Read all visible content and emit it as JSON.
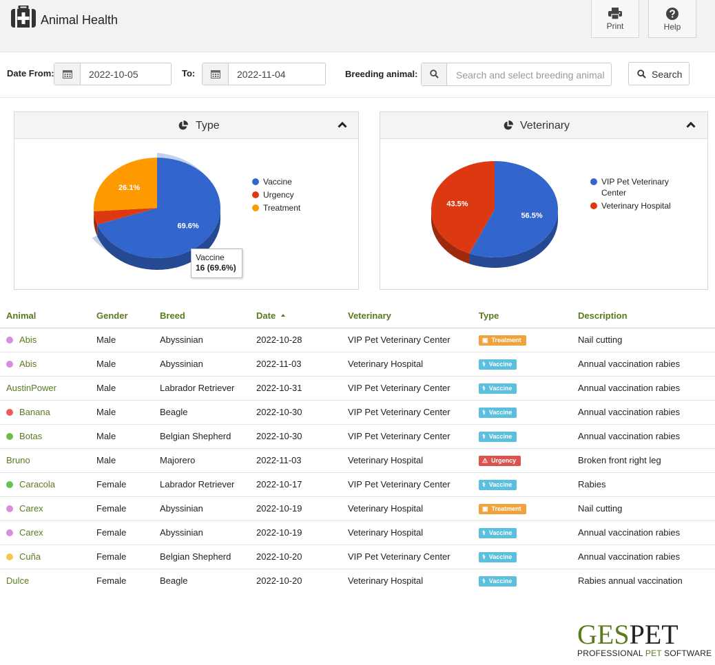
{
  "app": {
    "title": "Animal Health"
  },
  "toolbar": {
    "print_label": "Print",
    "help_label": "Help"
  },
  "filters": {
    "date_from_label": "Date From:",
    "date_from_value": "2022-10-05",
    "to_label": "To:",
    "to_value": "2022-11-04",
    "breeding_label": "Breeding animal:",
    "breeding_placeholder": "Search and select breeding animal",
    "search_label": "Search"
  },
  "panels": {
    "type_title": "Type",
    "vet_title": "Veterinary"
  },
  "chart_data": [
    {
      "type": "pie",
      "title": "Type",
      "categories": [
        "Vaccine",
        "Urgency",
        "Treatment"
      ],
      "values": [
        69.6,
        4.3,
        26.1
      ],
      "labels": [
        "69.6%",
        "",
        "26.1%"
      ],
      "colors": [
        "#3366cc",
        "#dc3912",
        "#ff9900"
      ],
      "legend_position": "right",
      "tooltip": {
        "label": "Vaccine",
        "value": "16 (69.6%)"
      }
    },
    {
      "type": "pie",
      "title": "Veterinary",
      "categories": [
        "VIP Pet Veterinary Center",
        "Veterinary Hospital"
      ],
      "legend_lines": [
        [
          "VIP Pet Veterinary",
          "Center"
        ],
        [
          "Veterinary Hospital"
        ]
      ],
      "values": [
        56.5,
        43.5
      ],
      "labels": [
        "56.5%",
        "43.5%"
      ],
      "colors": [
        "#3366cc",
        "#dc3912"
      ],
      "legend_position": "right"
    }
  ],
  "table": {
    "headers": [
      "Animal",
      "Gender",
      "Breed",
      "Date",
      "Veterinary",
      "Type",
      "Description"
    ],
    "rows": [
      {
        "animal": "Abis",
        "dot": "#d98ce0",
        "gender": "Male",
        "breed": "Abyssinian",
        "date": "2022-10-28",
        "vet": "VIP Pet Veterinary Center",
        "type": "Treatment",
        "badge_color": "#f0a23c",
        "icon": "treatment-icon",
        "desc": "Nail cutting"
      },
      {
        "animal": "Abis",
        "dot": "#d98ce0",
        "gender": "Male",
        "breed": "Abyssinian",
        "date": "2022-11-03",
        "vet": "Veterinary Hospital",
        "type": "Vaccine",
        "badge_color": "#5bc0de",
        "icon": "syringe-icon",
        "desc": "Annual vaccination rabies"
      },
      {
        "animal": "AustinPower",
        "dot": "",
        "gender": "Male",
        "breed": "Labrador Retriever",
        "date": "2022-10-31",
        "vet": "VIP Pet Veterinary Center",
        "type": "Vaccine",
        "badge_color": "#5bc0de",
        "icon": "syringe-icon",
        "desc": "Annual vaccination rabies"
      },
      {
        "animal": "Banana",
        "dot": "#ef5b5b",
        "gender": "Male",
        "breed": "Beagle",
        "date": "2022-10-30",
        "vet": "VIP Pet Veterinary Center",
        "type": "Vaccine",
        "badge_color": "#5bc0de",
        "icon": "syringe-icon",
        "desc": "Annual vaccination rabies"
      },
      {
        "animal": "Botas",
        "dot": "#6cc04a",
        "gender": "Male",
        "breed": "Belgian Shepherd",
        "date": "2022-10-30",
        "vet": "VIP Pet Veterinary Center",
        "type": "Vaccine",
        "badge_color": "#5bc0de",
        "icon": "syringe-icon",
        "desc": "Annual vaccination rabies"
      },
      {
        "animal": "Bruno",
        "dot": "",
        "gender": "Male",
        "breed": "Majorero",
        "date": "2022-11-03",
        "vet": "Veterinary Hospital",
        "type": "Urgency",
        "badge_color": "#d9534f",
        "icon": "warning-icon",
        "desc": "Broken front right leg"
      },
      {
        "animal": "Caracola",
        "dot": "#6cc04a",
        "gender": "Female",
        "breed": "Labrador Retriever",
        "date": "2022-10-17",
        "vet": "VIP Pet Veterinary Center",
        "type": "Vaccine",
        "badge_color": "#5bc0de",
        "icon": "syringe-icon",
        "desc": "Rabies"
      },
      {
        "animal": "Carex",
        "dot": "#d98ce0",
        "gender": "Female",
        "breed": "Abyssinian",
        "date": "2022-10-19",
        "vet": "Veterinary Hospital",
        "type": "Treatment",
        "badge_color": "#f0a23c",
        "icon": "treatment-icon",
        "desc": "Nail cutting"
      },
      {
        "animal": "Carex",
        "dot": "#d98ce0",
        "gender": "Female",
        "breed": "Abyssinian",
        "date": "2022-10-19",
        "vet": "Veterinary Hospital",
        "type": "Vaccine",
        "badge_color": "#5bc0de",
        "icon": "syringe-icon",
        "desc": "Annual vaccination rabies"
      },
      {
        "animal": "Cuña",
        "dot": "#f2c94c",
        "gender": "Female",
        "breed": "Belgian Shepherd",
        "date": "2022-10-20",
        "vet": "VIP Pet Veterinary Center",
        "type": "Vaccine",
        "badge_color": "#5bc0de",
        "icon": "syringe-icon",
        "desc": "Annual vaccination rabies"
      },
      {
        "animal": "Dulce",
        "dot": "",
        "gender": "Female",
        "breed": "Beagle",
        "date": "2022-10-20",
        "vet": "Veterinary Hospital",
        "type": "Vaccine",
        "badge_color": "#5bc0de",
        "icon": "syringe-icon",
        "desc": "Rabies annual vaccination"
      }
    ]
  },
  "brand": {
    "logo_part1": "GES",
    "logo_part2": "PET",
    "tag_part1": "PROFESSIONAL ",
    "tag_part2": "PET",
    "tag_part3": " SOFTWARE"
  },
  "colors": {
    "accent": "#5a7a1e",
    "vaccine": "#3366cc",
    "urgency": "#dc3912",
    "treatment": "#ff9900"
  }
}
